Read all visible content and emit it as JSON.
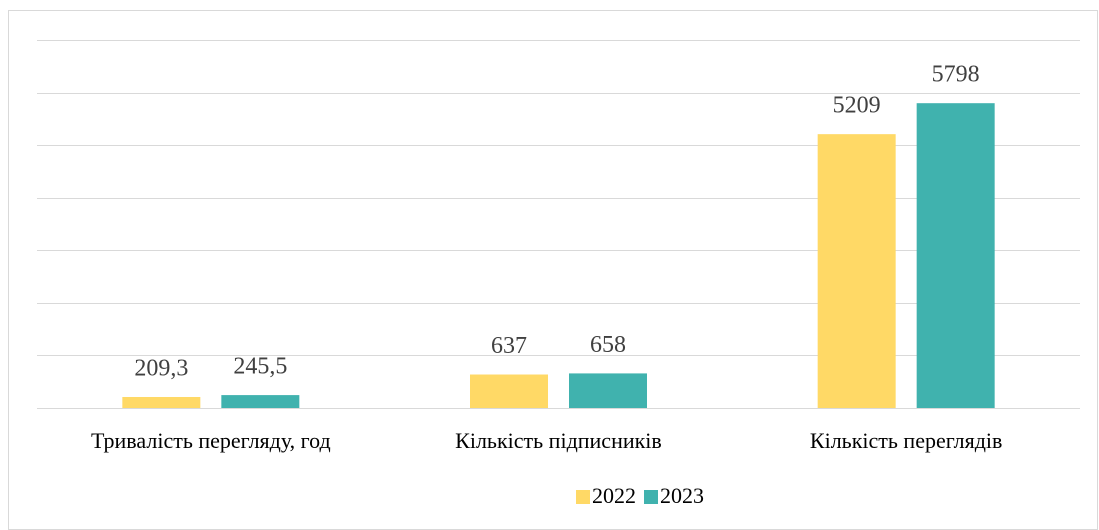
{
  "chart_data": {
    "type": "bar",
    "categories": [
      "Тривалість перегляду, год",
      "Кількість підписників",
      "Кількість переглядів"
    ],
    "series": [
      {
        "name": "2022",
        "color": "#FFD966",
        "values": [
          209.3,
          637,
          5209
        ],
        "value_labels": [
          "209,3",
          "637",
          "5209"
        ]
      },
      {
        "name": "2023",
        "color": "#40B2AE",
        "values": [
          245.5,
          658,
          5798
        ],
        "value_labels": [
          "245,5",
          "658",
          "5798"
        ]
      }
    ],
    "ylim": [
      0,
      7000
    ],
    "yticks": [
      0,
      1000,
      2000,
      3000,
      4000,
      5000,
      6000,
      7000
    ],
    "grid": true,
    "legend": "bottom"
  }
}
